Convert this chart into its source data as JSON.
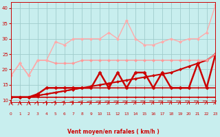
{
  "xlabel": "Vent moyen/en rafales ( km/h )",
  "background_color": "#c8eeee",
  "grid_color": "#a0cccc",
  "xlim": [
    0,
    23
  ],
  "ylim": [
    9.5,
    42
  ],
  "yticks": [
    10,
    15,
    20,
    25,
    30,
    35,
    40
  ],
  "xticks": [
    0,
    1,
    2,
    3,
    4,
    5,
    6,
    7,
    8,
    9,
    10,
    11,
    12,
    13,
    14,
    15,
    16,
    17,
    18,
    19,
    20,
    21,
    22,
    23
  ],
  "lines": [
    {
      "x": [
        0,
        1,
        2,
        3,
        4,
        5,
        6,
        7,
        8,
        9,
        10,
        11,
        12,
        13,
        14,
        15,
        16,
        17,
        18,
        19,
        20,
        21,
        22,
        23
      ],
      "y": [
        11,
        11,
        11,
        11,
        11,
        11,
        11,
        11,
        11,
        11,
        11,
        11,
        11,
        11,
        11,
        11,
        11,
        11,
        11,
        11,
        11,
        11,
        11,
        11
      ],
      "color": "#cc0000",
      "lw": 1.2,
      "marker": "+",
      "ms": 3.0
    },
    {
      "x": [
        0,
        1,
        2,
        3,
        4,
        5,
        6,
        7,
        8,
        9,
        10,
        11,
        12,
        13,
        14,
        15,
        16,
        17,
        18,
        19,
        20,
        21,
        22,
        23
      ],
      "y": [
        11,
        11,
        11,
        11.5,
        12,
        12.5,
        13,
        13.5,
        14,
        14,
        14,
        14,
        14,
        14,
        14,
        14,
        14,
        14,
        14,
        14,
        14,
        14,
        14,
        14
      ],
      "color": "#cc0000",
      "lw": 1.2,
      "marker": "+",
      "ms": 3.0
    },
    {
      "x": [
        0,
        1,
        2,
        3,
        4,
        5,
        6,
        7,
        8,
        9,
        10,
        11,
        12,
        13,
        14,
        15,
        16,
        17,
        18,
        19,
        20,
        21,
        22,
        23
      ],
      "y": [
        11,
        11,
        11,
        11.5,
        12,
        12.5,
        13,
        13.5,
        14,
        14.5,
        15,
        15.5,
        16,
        16.5,
        17,
        17.5,
        18,
        18.5,
        19,
        20,
        21,
        22,
        23,
        25
      ],
      "color": "#cc0000",
      "lw": 1.5,
      "marker": "D",
      "ms": 2.0
    },
    {
      "x": [
        0,
        1,
        2,
        3,
        4,
        5,
        6,
        7,
        8,
        9,
        10,
        11,
        12,
        13,
        14,
        15,
        16,
        17,
        18,
        19,
        20,
        21,
        22,
        23
      ],
      "y": [
        11,
        11,
        11,
        12,
        14,
        14,
        14,
        14,
        14,
        14,
        19,
        14,
        19,
        14,
        19,
        19,
        14,
        19,
        14,
        14,
        14,
        22,
        14,
        25
      ],
      "color": "#cc0000",
      "lw": 1.8,
      "marker": "D",
      "ms": 2.5
    },
    {
      "x": [
        0,
        1,
        2,
        3,
        4,
        5,
        6,
        7,
        8,
        9,
        10,
        11,
        12,
        13,
        14,
        15,
        16,
        17,
        18,
        19,
        20,
        21,
        22,
        23
      ],
      "y": [
        18,
        22,
        18,
        23,
        23,
        22,
        22,
        22,
        23,
        23,
        23,
        23,
        23,
        23,
        23,
        23,
        23,
        23,
        23,
        23,
        23,
        23,
        23,
        25
      ],
      "color": "#ff9999",
      "lw": 1.0,
      "marker": "D",
      "ms": 2.0
    },
    {
      "x": [
        0,
        1,
        2,
        3,
        4,
        5,
        6,
        7,
        8,
        9,
        10,
        11,
        12,
        13,
        14,
        15,
        16,
        17,
        18,
        19,
        20,
        21,
        22,
        23
      ],
      "y": [
        18,
        22,
        18,
        23,
        23,
        29,
        28,
        30,
        30,
        30,
        30,
        32,
        30,
        36,
        30,
        28,
        28,
        29,
        30,
        29,
        30,
        30,
        32,
        41
      ],
      "color": "#ffaaaa",
      "lw": 1.0,
      "marker": "D",
      "ms": 2.0
    }
  ],
  "arrow_angles": [
    90,
    90,
    90,
    80,
    75,
    70,
    65,
    60,
    55,
    50,
    45,
    42,
    40,
    38,
    36,
    34,
    32,
    30,
    28,
    26,
    24,
    22,
    21,
    20
  ]
}
